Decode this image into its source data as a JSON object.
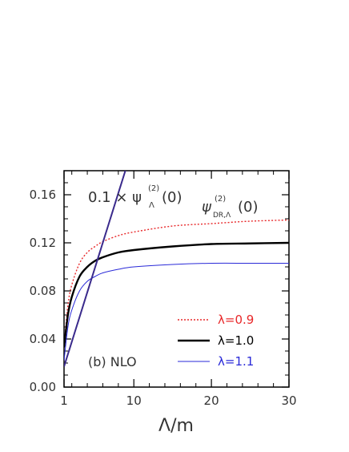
{
  "chart_data": {
    "type": "line",
    "xlabel": "Λ/m",
    "ylabel": "",
    "xlim": [
      1,
      30
    ],
    "ylim": [
      0,
      0.18
    ],
    "x_ticks": [
      "1",
      "10",
      "20",
      "30"
    ],
    "y_ticks": [
      "0.00",
      "0.04",
      "0.08",
      "0.12",
      "0.16"
    ],
    "x_tick_values": [
      1,
      10,
      20,
      30
    ],
    "y_tick_values": [
      0,
      0.04,
      0.08,
      0.12,
      0.16
    ],
    "grid": false,
    "legend_position": "bottom-right",
    "annotations": {
      "panel": "(b)  NLO",
      "linear_curve_label": "0.1 × ψ",
      "linear_curve_label_sup": "(2)",
      "linear_curve_label_sub": "Λ",
      "linear_curve_label_arg": "(0)",
      "dr_curves_label": "ψ",
      "dr_curves_label_sup": "(2)",
      "dr_curves_label_sub": "DR,Λ",
      "dr_curves_label_arg": "(0)"
    },
    "series": [
      {
        "name": "λ=0.9",
        "color": "#e8282a",
        "style": "dotted",
        "x": [
          1,
          1.5,
          2,
          3,
          4,
          5,
          6,
          8,
          10,
          15,
          20,
          25,
          30
        ],
        "y": [
          0.033,
          0.068,
          0.085,
          0.103,
          0.112,
          0.117,
          0.121,
          0.126,
          0.129,
          0.134,
          0.136,
          0.138,
          0.139
        ]
      },
      {
        "name": "λ=1.0",
        "color": "#000000",
        "style": "solid-thick",
        "x": [
          1,
          1.5,
          2,
          3,
          4,
          5,
          6,
          8,
          10,
          15,
          20,
          25,
          30
        ],
        "y": [
          0.033,
          0.06,
          0.075,
          0.092,
          0.1,
          0.105,
          0.108,
          0.112,
          0.114,
          0.117,
          0.119,
          0.1195,
          0.12
        ]
      },
      {
        "name": "λ=1.1",
        "color": "#2a2ad8",
        "style": "solid-thin",
        "x": [
          1,
          1.5,
          2,
          3,
          4,
          5,
          6,
          8,
          10,
          15,
          20,
          25,
          30
        ],
        "y": [
          0.022,
          0.05,
          0.064,
          0.08,
          0.088,
          0.092,
          0.095,
          0.098,
          0.1,
          0.102,
          0.103,
          0.103,
          0.103
        ]
      },
      {
        "name": "0.1 × ψΛ(2)(0)",
        "color": "#3a2a8c",
        "style": "solid-linear",
        "x": [
          1,
          9
        ],
        "y": [
          0.017,
          0.182
        ]
      }
    ]
  }
}
